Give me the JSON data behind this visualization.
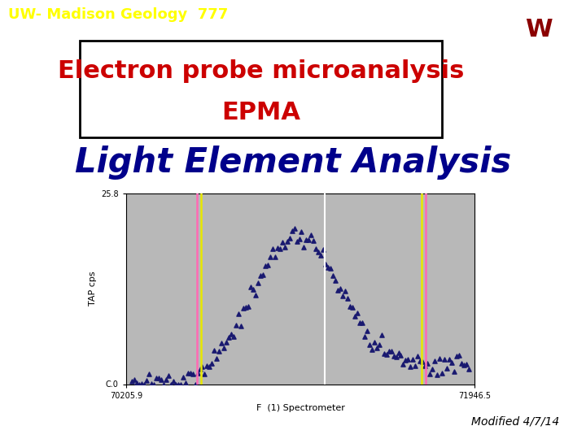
{
  "background_color": "#ffffff",
  "header_bg": "#2d6a00",
  "header_text": "UW- Madison Geology  777",
  "header_text_color": "#ffff00",
  "header_fontsize": 13,
  "title_line1": "Electron probe microanalysis",
  "title_line2": "EPMA",
  "title_color": "#cc0000",
  "title_fontsize": 22,
  "subtitle": "Light Element Analysis",
  "subtitle_color": "#00008b",
  "subtitle_fontsize": 30,
  "footer": "Modified 4/7/14",
  "footer_color": "#000000",
  "footer_fontsize": 10,
  "plot_bg": "#b8b8b8",
  "plot_xlim": [
    70205.9,
    71946.5
  ],
  "plot_ylim": [
    0.0,
    25.8
  ],
  "plot_xlabel": "F  (1) Spectrometer",
  "plot_ylabel": "TAP cps",
  "scatter_color": "#191970",
  "ytick_top": 25.8,
  "ytick_bottom": 0.0,
  "xtick_left": "70205.9",
  "xtick_right": "71946.5",
  "badger_bg": "#e8d4a0"
}
